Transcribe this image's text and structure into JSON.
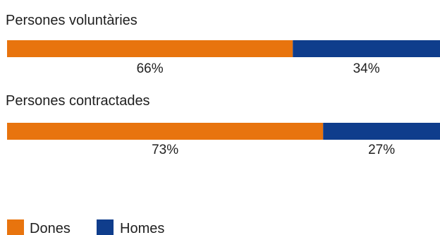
{
  "chart_data": {
    "type": "bar",
    "orientation": "horizontal",
    "stacked": true,
    "percent": true,
    "categories": [
      "Persones voluntàries",
      "Persones contractades"
    ],
    "series": [
      {
        "name": "Dones",
        "values": [
          66,
          73
        ],
        "labels": [
          "66%",
          "73%"
        ],
        "color": "#e8740e"
      },
      {
        "name": "Homes",
        "values": [
          34,
          27
        ],
        "labels": [
          "34%",
          "27%"
        ],
        "color": "#0f3d8c"
      }
    ],
    "xlim": [
      0,
      100
    ],
    "grid": false,
    "legend_position": "bottom-left"
  }
}
